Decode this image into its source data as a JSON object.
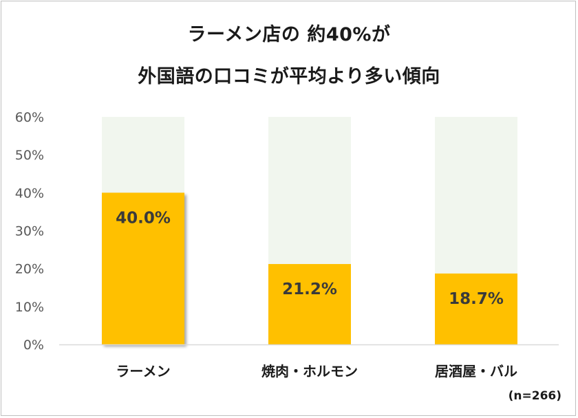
{
  "title_line1": "ラーメン店の 約40%が",
  "title_line2": "外国語の口コミが平均より多い傾向",
  "note": "(n=266)",
  "chart_data": {
    "type": "bar",
    "categories": [
      "ラーメン",
      "焼肉・ホルモン",
      "居酒屋・バル"
    ],
    "values": [
      40.0,
      21.2,
      18.7
    ],
    "value_labels": [
      "40.0%",
      "21.2%",
      "18.7%"
    ],
    "ylim": [
      0,
      60
    ],
    "y_ticks": [
      "0%",
      "10%",
      "20%",
      "30%",
      "40%",
      "50%",
      "60%"
    ],
    "grid": false,
    "colors": {
      "bar": "#ffc000",
      "background_bar": "#f1f6ee"
    }
  }
}
